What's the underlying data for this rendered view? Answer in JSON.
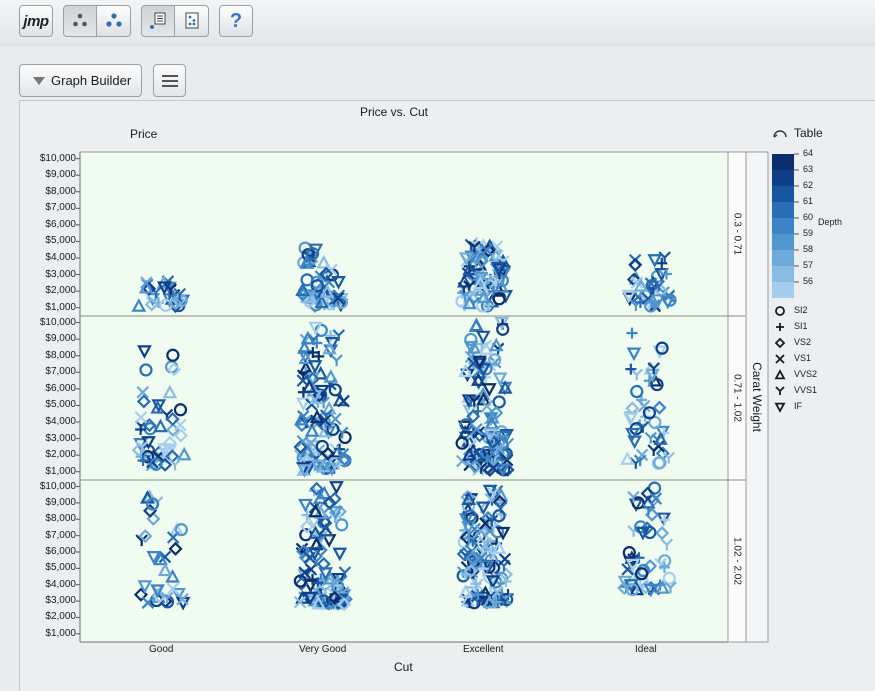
{
  "toolbar": {
    "buttons": [
      {
        "name": "jmp-home-button",
        "label": "jmp"
      },
      {
        "name": "points-icon",
        "pressed": true
      },
      {
        "name": "cluster-icon",
        "pressed": false
      },
      {
        "name": "report-layout-icon",
        "pressed": true
      },
      {
        "name": "dice-layout-icon",
        "pressed": false
      },
      {
        "name": "help-button",
        "label": "?"
      }
    ]
  },
  "platform": {
    "title": "Graph Builder",
    "menu_icon": "hamburger-menu-icon"
  },
  "graph": {
    "title": "Price vs. Cut",
    "y_title": "Price",
    "x_title": "Cut",
    "group_title": "Carat Weight",
    "y_ticks": [
      "$10,000",
      "$9,000",
      "$8,000",
      "$7,000",
      "$6,000",
      "$5,000",
      "$4,000",
      "$3,000",
      "$2,000",
      "$1,000"
    ],
    "x_categories": [
      "Good",
      "Very Good",
      "Excellent",
      "Ideal"
    ],
    "groups": [
      "0.3 - 0.71",
      "0.71 - 1.02",
      "1.02 - 2.02"
    ]
  },
  "legend": {
    "title": "Table",
    "color_title": "Depth",
    "color_levels": [
      "64",
      "63",
      "62",
      "61",
      "60",
      "59",
      "58",
      "57",
      "56"
    ],
    "colors": [
      "#0b2d6b",
      "#0f3f88",
      "#1a56a0",
      "#2a6db5",
      "#3a83c4",
      "#5296cf",
      "#6da9d9",
      "#8abbe3",
      "#a4cdee"
    ],
    "shapes": [
      {
        "label": "SI2",
        "icon": "circle-marker-icon"
      },
      {
        "label": "SI1",
        "icon": "plus-marker-icon"
      },
      {
        "label": "VS2",
        "icon": "diamond-marker-icon"
      },
      {
        "label": "VS1",
        "icon": "x-marker-icon"
      },
      {
        "label": "VVS2",
        "icon": "triangle-marker-icon"
      },
      {
        "label": "VVS1",
        "icon": "y-marker-icon"
      },
      {
        "label": "IF",
        "icon": "inverted-triangle-marker-icon"
      }
    ]
  },
  "chart_data": {
    "type": "scatter",
    "title": "Price vs. Cut",
    "xlabel": "Cut",
    "ylabel": "Price",
    "ylim": [
      500,
      10400
    ],
    "categories": [
      "Good",
      "Very Good",
      "Excellent",
      "Ideal"
    ],
    "group_by": "Carat Weight",
    "groups": [
      "0.3 - 0.71",
      "0.71 - 1.02",
      "1.02 - 2.02"
    ],
    "color_by": "Depth",
    "shape_by": "Table",
    "grid": false,
    "legend": "right",
    "clusters": [
      {
        "group": "0.3 - 0.71",
        "cut": "Good",
        "n": 28,
        "min": 1100,
        "max": 2600
      },
      {
        "group": "0.3 - 0.71",
        "cut": "Very Good",
        "n": 55,
        "min": 1100,
        "max": 4600
      },
      {
        "group": "0.3 - 0.71",
        "cut": "Excellent",
        "n": 80,
        "min": 1100,
        "max": 5000
      },
      {
        "group": "0.3 - 0.71",
        "cut": "Ideal",
        "n": 38,
        "min": 1100,
        "max": 4100
      },
      {
        "group": "0.71 - 1.02",
        "cut": "Good",
        "n": 45,
        "min": 1400,
        "max": 8500
      },
      {
        "group": "0.71 - 1.02",
        "cut": "Very Good",
        "n": 110,
        "min": 1100,
        "max": 10000
      },
      {
        "group": "0.71 - 1.02",
        "cut": "Excellent",
        "n": 120,
        "min": 1100,
        "max": 10000
      },
      {
        "group": "0.71 - 1.02",
        "cut": "Ideal",
        "n": 42,
        "min": 1500,
        "max": 9400
      },
      {
        "group": "1.02 - 2.02",
        "cut": "Good",
        "n": 32,
        "min": 2900,
        "max": 9600
      },
      {
        "group": "1.02 - 2.02",
        "cut": "Very Good",
        "n": 105,
        "min": 2800,
        "max": 10000
      },
      {
        "group": "1.02 - 2.02",
        "cut": "Excellent",
        "n": 125,
        "min": 2900,
        "max": 10000
      },
      {
        "group": "1.02 - 2.02",
        "cut": "Ideal",
        "n": 50,
        "min": 3700,
        "max": 10000
      }
    ]
  }
}
